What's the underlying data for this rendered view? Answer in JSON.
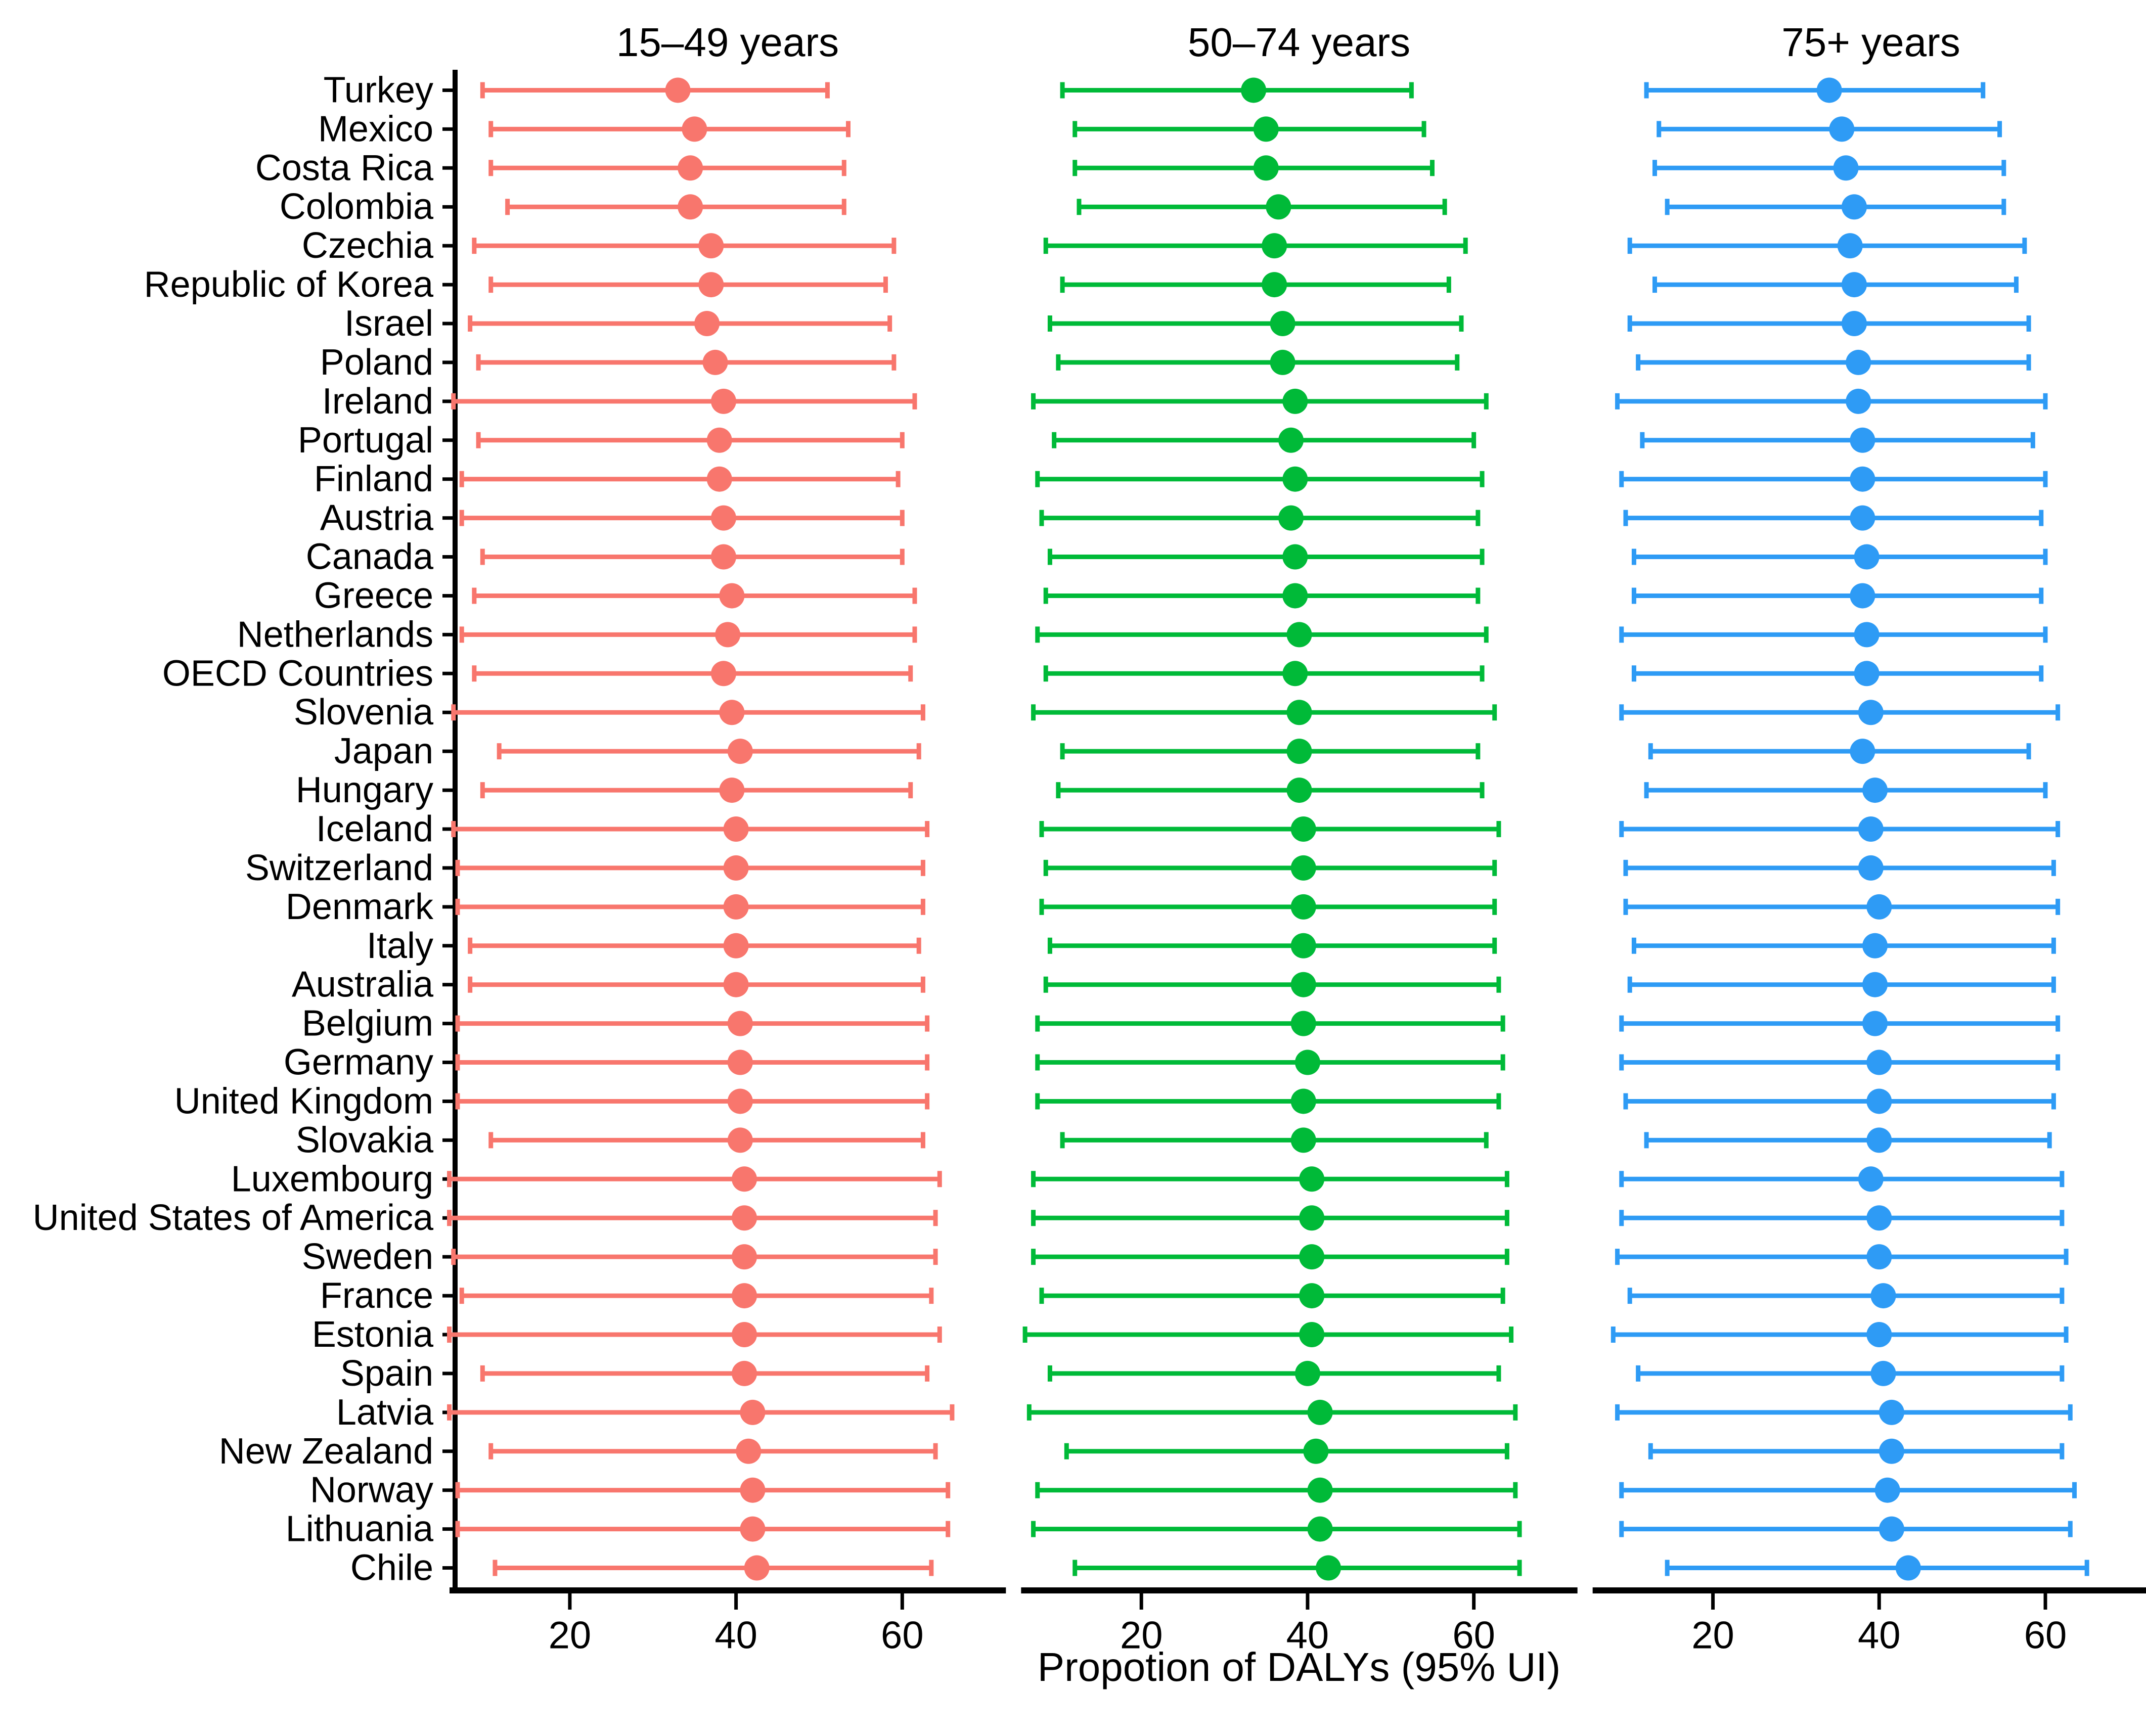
{
  "chart_data": {
    "type": "scatter",
    "subtype": "horizontal-dot-whisker",
    "title": "",
    "xlabel": "Propotion of DALYs (95% UI)",
    "ylabel": "",
    "x_ticks": [
      20,
      40,
      60
    ],
    "xlim": [
      6.5,
      71.5
    ],
    "grid": "off",
    "legend_position": "none",
    "value_format": "low, mid, high",
    "categories": [
      "Turkey",
      "Mexico",
      "Costa Rica",
      "Colombia",
      "Czechia",
      "Republic of Korea",
      "Israel",
      "Poland",
      "Ireland",
      "Portugal",
      "Finland",
      "Austria",
      "Canada",
      "Greece",
      "Netherlands",
      "OECD Countries",
      "Slovenia",
      "Japan",
      "Hungary",
      "Iceland",
      "Switzerland",
      "Denmark",
      "Italy",
      "Australia",
      "Belgium",
      "Germany",
      "United Kingdom",
      "Slovakia",
      "Luxembourg",
      "United States of America",
      "Sweden",
      "France",
      "Estonia",
      "Spain",
      "Latvia",
      "New Zealand",
      "Norway",
      "Lithuania",
      "Chile"
    ],
    "panels": [
      {
        "title": "15–49 years",
        "color": "#F8766D",
        "series": [
          [
            9.5,
            33,
            51
          ],
          [
            10.5,
            35,
            53.5
          ],
          [
            10.5,
            34.5,
            53
          ],
          [
            12.5,
            34.5,
            53
          ],
          [
            8.5,
            37,
            59
          ],
          [
            10.5,
            37,
            58
          ],
          [
            8,
            36.5,
            58.5
          ],
          [
            9,
            37.5,
            59
          ],
          [
            6,
            38.5,
            61.5
          ],
          [
            9,
            38,
            60
          ],
          [
            7,
            38,
            59.5
          ],
          [
            7,
            38.5,
            60
          ],
          [
            9.5,
            38.5,
            60
          ],
          [
            8.5,
            39.5,
            61.5
          ],
          [
            7,
            39,
            61.5
          ],
          [
            8.5,
            38.5,
            61
          ],
          [
            6,
            39.5,
            62.5
          ],
          [
            11.5,
            40.5,
            62
          ],
          [
            9.5,
            39.5,
            61
          ],
          [
            6,
            40,
            63
          ],
          [
            6.5,
            40,
            62.5
          ],
          [
            6.5,
            40,
            62.5
          ],
          [
            8,
            40,
            62
          ],
          [
            8,
            40,
            62.5
          ],
          [
            6.5,
            40.5,
            63
          ],
          [
            6.5,
            40.5,
            63
          ],
          [
            6.5,
            40.5,
            63
          ],
          [
            10.5,
            40.5,
            62.5
          ],
          [
            5.5,
            41,
            64.5
          ],
          [
            5.5,
            41,
            64
          ],
          [
            6,
            41,
            64
          ],
          [
            7,
            41,
            63.5
          ],
          [
            5.5,
            41,
            64.5
          ],
          [
            9.5,
            41,
            63
          ],
          [
            5.5,
            42,
            66
          ],
          [
            10.5,
            41.5,
            64
          ],
          [
            6.5,
            42,
            65.5
          ],
          [
            6.5,
            42,
            65.5
          ],
          [
            11,
            42.5,
            63.5
          ]
        ]
      },
      {
        "title": "50–74 years",
        "color": "#00BA38",
        "series": [
          [
            10.5,
            33.5,
            52.5
          ],
          [
            12,
            35,
            54
          ],
          [
            12,
            35,
            55
          ],
          [
            12.5,
            36.5,
            56.5
          ],
          [
            8.5,
            36,
            59
          ],
          [
            10.5,
            36,
            57
          ],
          [
            9,
            37,
            58.5
          ],
          [
            10,
            37,
            58
          ],
          [
            7,
            38.5,
            61.5
          ],
          [
            9.5,
            38,
            60
          ],
          [
            7.5,
            38.5,
            61
          ],
          [
            8,
            38,
            60.5
          ],
          [
            9,
            38.5,
            61
          ],
          [
            8.5,
            38.5,
            60.5
          ],
          [
            7.5,
            39,
            61.5
          ],
          [
            8.5,
            38.5,
            61
          ],
          [
            7,
            39,
            62.5
          ],
          [
            10.5,
            39,
            60.5
          ],
          [
            10,
            39,
            61
          ],
          [
            8,
            39.5,
            63
          ],
          [
            8.5,
            39.5,
            62.5
          ],
          [
            8,
            39.5,
            62.5
          ],
          [
            9,
            39.5,
            62.5
          ],
          [
            8.5,
            39.5,
            63
          ],
          [
            7.5,
            39.5,
            63.5
          ],
          [
            7.5,
            40,
            63.5
          ],
          [
            7.5,
            39.5,
            63
          ],
          [
            10.5,
            39.5,
            61.5
          ],
          [
            7,
            40.5,
            64
          ],
          [
            7,
            40.5,
            64
          ],
          [
            7,
            40.5,
            64
          ],
          [
            8,
            40.5,
            63.5
          ],
          [
            6,
            40.5,
            64.5
          ],
          [
            9,
            40,
            63
          ],
          [
            6.5,
            41.5,
            65
          ],
          [
            11,
            41,
            64
          ],
          [
            7.5,
            41.5,
            65
          ],
          [
            7,
            41.5,
            65.5
          ],
          [
            12,
            42.5,
            65.5
          ]
        ]
      },
      {
        "title": "75+ years",
        "color": "#2E9BF5",
        "series": [
          [
            12,
            34,
            52.5
          ],
          [
            13.5,
            35.5,
            54.5
          ],
          [
            13,
            36,
            55
          ],
          [
            14.5,
            37,
            55
          ],
          [
            10,
            36.5,
            57.5
          ],
          [
            13,
            37,
            56.5
          ],
          [
            10,
            37,
            58
          ],
          [
            11,
            37.5,
            58
          ],
          [
            8.5,
            37.5,
            60
          ],
          [
            11.5,
            38,
            58.5
          ],
          [
            9,
            38,
            60
          ],
          [
            9.5,
            38,
            59.5
          ],
          [
            10.5,
            38.5,
            60
          ],
          [
            10.5,
            38,
            59.5
          ],
          [
            9,
            38.5,
            60
          ],
          [
            10.5,
            38.5,
            59.5
          ],
          [
            9,
            39,
            61.5
          ],
          [
            12.5,
            38,
            58
          ],
          [
            12,
            39.5,
            60
          ],
          [
            9,
            39,
            61.5
          ],
          [
            9.5,
            39,
            61
          ],
          [
            9.5,
            40,
            61.5
          ],
          [
            10.5,
            39.5,
            61
          ],
          [
            10,
            39.5,
            61
          ],
          [
            9,
            39.5,
            61.5
          ],
          [
            9,
            40,
            61.5
          ],
          [
            9.5,
            40,
            61
          ],
          [
            12,
            40,
            60.5
          ],
          [
            9,
            39,
            62
          ],
          [
            9,
            40,
            62
          ],
          [
            8.5,
            40,
            62.5
          ],
          [
            10,
            40.5,
            62
          ],
          [
            8,
            40,
            62.5
          ],
          [
            11,
            40.5,
            62
          ],
          [
            8.5,
            41.5,
            63
          ],
          [
            12.5,
            41.5,
            62
          ],
          [
            9,
            41,
            63.5
          ],
          [
            9,
            41.5,
            63
          ],
          [
            14.5,
            43.5,
            65
          ]
        ]
      }
    ]
  }
}
